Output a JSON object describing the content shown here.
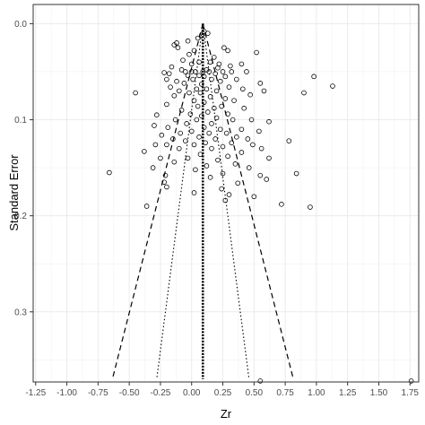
{
  "chart_data": {
    "type": "scatter",
    "title": "",
    "xlabel": "Zr",
    "ylabel": "Standard Error",
    "xlim": [
      -1.27,
      1.82
    ],
    "ylim": [
      0.373,
      -0.02
    ],
    "y_reversed": true,
    "grid": true,
    "legend": "none",
    "x_ticks": [
      -1.25,
      -1.0,
      -0.75,
      -0.5,
      -0.25,
      0.0,
      0.25,
      0.5,
      0.75,
      1.0,
      1.25,
      1.5,
      1.75
    ],
    "x_tick_labels": [
      "-1.25",
      "-1.00",
      "-0.75",
      "-0.50",
      "-0.25",
      "0.00",
      "0.25",
      "0.50",
      "0.75",
      "1.00",
      "1.25",
      "1.50",
      "1.75"
    ],
    "y_ticks": [
      0.0,
      0.1,
      0.2,
      0.3
    ],
    "y_tick_labels": [
      "0.0",
      "0.1",
      "0.2",
      "0.3"
    ],
    "summary_effect": 0.09,
    "funnel_se_max": 0.37,
    "funnel_95_multiplier": 1.96,
    "funnel_inner_multiplier": 1.0,
    "points": [
      {
        "x": 0.1,
        "y": 0.008
      },
      {
        "x": 0.13,
        "y": 0.01
      },
      {
        "x": 0.08,
        "y": 0.012
      },
      {
        "x": 0.05,
        "y": 0.015
      },
      {
        "x": -0.14,
        "y": 0.022
      },
      {
        "x": -0.12,
        "y": 0.02
      },
      {
        "x": -0.03,
        "y": 0.018
      },
      {
        "x": -0.11,
        "y": 0.025
      },
      {
        "x": 0.02,
        "y": 0.028
      },
      {
        "x": 0.26,
        "y": 0.025
      },
      {
        "x": 0.29,
        "y": 0.028
      },
      {
        "x": 0.52,
        "y": 0.03
      },
      {
        "x": -0.02,
        "y": 0.032
      },
      {
        "x": 0.18,
        "y": 0.035
      },
      {
        "x": -0.07,
        "y": 0.038
      },
      {
        "x": 0.06,
        "y": 0.04
      },
      {
        "x": 0.0,
        "y": 0.042
      },
      {
        "x": 0.15,
        "y": 0.04
      },
      {
        "x": 0.22,
        "y": 0.042
      },
      {
        "x": 0.31,
        "y": 0.044
      },
      {
        "x": 0.4,
        "y": 0.042
      },
      {
        "x": -0.16,
        "y": 0.045
      },
      {
        "x": 0.21,
        "y": 0.046
      },
      {
        "x": 0.12,
        "y": 0.048
      },
      {
        "x": -0.08,
        "y": 0.048
      },
      {
        "x": -0.05,
        "y": 0.05
      },
      {
        "x": 0.0,
        "y": 0.05
      },
      {
        "x": 0.03,
        "y": 0.05
      },
      {
        "x": 0.09,
        "y": 0.05
      },
      {
        "x": 0.14,
        "y": 0.05
      },
      {
        "x": 0.25,
        "y": 0.05
      },
      {
        "x": 0.32,
        "y": 0.05
      },
      {
        "x": 0.44,
        "y": 0.05
      },
      {
        "x": -0.22,
        "y": 0.051
      },
      {
        "x": -0.18,
        "y": 0.052
      },
      {
        "x": 0.19,
        "y": 0.052
      },
      {
        "x": -0.03,
        "y": 0.054
      },
      {
        "x": 0.06,
        "y": 0.054
      },
      {
        "x": 0.1,
        "y": 0.055
      },
      {
        "x": 0.27,
        "y": 0.055
      },
      {
        "x": -0.2,
        "y": 0.058
      },
      {
        "x": -0.12,
        "y": 0.06
      },
      {
        "x": 0.01,
        "y": 0.058
      },
      {
        "x": 0.16,
        "y": 0.058
      },
      {
        "x": 0.23,
        "y": 0.06
      },
      {
        "x": 0.36,
        "y": 0.058
      },
      {
        "x": 0.55,
        "y": 0.062
      },
      {
        "x": -0.06,
        "y": 0.062
      },
      {
        "x": 0.08,
        "y": 0.063
      },
      {
        "x": 0.98,
        "y": 0.055
      },
      {
        "x": -0.17,
        "y": 0.066
      },
      {
        "x": 0.04,
        "y": 0.068
      },
      {
        "x": 0.12,
        "y": 0.068
      },
      {
        "x": 0.3,
        "y": 0.066
      },
      {
        "x": 0.41,
        "y": 0.068
      },
      {
        "x": 0.58,
        "y": 0.07
      },
      {
        "x": 1.13,
        "y": 0.065
      },
      {
        "x": -0.1,
        "y": 0.07
      },
      {
        "x": 0.2,
        "y": 0.07
      },
      {
        "x": -0.02,
        "y": 0.072
      },
      {
        "x": 0.07,
        "y": 0.072
      },
      {
        "x": -0.45,
        "y": 0.072
      },
      {
        "x": 0.9,
        "y": 0.072
      },
      {
        "x": 0.47,
        "y": 0.074
      },
      {
        "x": -0.14,
        "y": 0.075
      },
      {
        "x": 0.15,
        "y": 0.076
      },
      {
        "x": 0.27,
        "y": 0.078
      },
      {
        "x": 0.02,
        "y": 0.08
      },
      {
        "x": 0.1,
        "y": 0.082
      },
      {
        "x": 0.34,
        "y": 0.08
      },
      {
        "x": -0.2,
        "y": 0.084
      },
      {
        "x": 0.05,
        "y": 0.086
      },
      {
        "x": 0.18,
        "y": 0.088
      },
      {
        "x": 0.24,
        "y": 0.086
      },
      {
        "x": 0.42,
        "y": 0.088
      },
      {
        "x": -0.08,
        "y": 0.09
      },
      {
        "x": 0.13,
        "y": 0.092
      },
      {
        "x": -0.01,
        "y": 0.094
      },
      {
        "x": 0.29,
        "y": 0.094
      },
      {
        "x": -0.28,
        "y": 0.095
      },
      {
        "x": 0.08,
        "y": 0.096
      },
      {
        "x": 0.2,
        "y": 0.098
      },
      {
        "x": -0.13,
        "y": 0.1
      },
      {
        "x": 0.04,
        "y": 0.1
      },
      {
        "x": 0.33,
        "y": 0.1
      },
      {
        "x": 0.48,
        "y": 0.1
      },
      {
        "x": 0.62,
        "y": 0.102
      },
      {
        "x": -0.04,
        "y": 0.104
      },
      {
        "x": 0.16,
        "y": 0.104
      },
      {
        "x": -0.3,
        "y": 0.106
      },
      {
        "x": -0.19,
        "y": 0.108
      },
      {
        "x": 0.1,
        "y": 0.108
      },
      {
        "x": 0.23,
        "y": 0.11
      },
      {
        "x": 0.4,
        "y": 0.11
      },
      {
        "x": 0.0,
        "y": 0.112
      },
      {
        "x": 0.54,
        "y": 0.112
      },
      {
        "x": -0.09,
        "y": 0.114
      },
      {
        "x": 0.14,
        "y": 0.114
      },
      {
        "x": 0.28,
        "y": 0.114
      },
      {
        "x": -0.24,
        "y": 0.116
      },
      {
        "x": 0.06,
        "y": 0.118
      },
      {
        "x": 0.36,
        "y": 0.118
      },
      {
        "x": -0.15,
        "y": 0.12
      },
      {
        "x": 0.19,
        "y": 0.12
      },
      {
        "x": 0.45,
        "y": 0.12
      },
      {
        "x": -0.05,
        "y": 0.122
      },
      {
        "x": 0.11,
        "y": 0.124
      },
      {
        "x": 0.32,
        "y": 0.124
      },
      {
        "x": 0.78,
        "y": 0.122
      },
      {
        "x": -0.29,
        "y": 0.126
      },
      {
        "x": -0.2,
        "y": 0.126
      },
      {
        "x": 0.02,
        "y": 0.126
      },
      {
        "x": 0.25,
        "y": 0.128
      },
      {
        "x": 0.49,
        "y": 0.126
      },
      {
        "x": 0.56,
        "y": 0.13
      },
      {
        "x": -0.1,
        "y": 0.13
      },
      {
        "x": 0.16,
        "y": 0.13
      },
      {
        "x": -0.38,
        "y": 0.133
      },
      {
        "x": 0.4,
        "y": 0.134
      },
      {
        "x": 0.07,
        "y": 0.136
      },
      {
        "x": 0.29,
        "y": 0.138
      },
      {
        "x": -0.25,
        "y": 0.14
      },
      {
        "x": -0.03,
        "y": 0.14
      },
      {
        "x": 0.62,
        "y": 0.14
      },
      {
        "x": 0.21,
        "y": 0.142
      },
      {
        "x": -0.14,
        "y": 0.144
      },
      {
        "x": 0.35,
        "y": 0.146
      },
      {
        "x": 0.12,
        "y": 0.148
      },
      {
        "x": -0.31,
        "y": 0.15
      },
      {
        "x": 0.46,
        "y": 0.15
      },
      {
        "x": 0.03,
        "y": 0.152
      },
      {
        "x": -0.66,
        "y": 0.155
      },
      {
        "x": 0.25,
        "y": 0.156
      },
      {
        "x": -0.21,
        "y": 0.158
      },
      {
        "x": 0.55,
        "y": 0.158
      },
      {
        "x": 0.84,
        "y": 0.156
      },
      {
        "x": 0.15,
        "y": 0.16
      },
      {
        "x": -0.22,
        "y": 0.165
      },
      {
        "x": 0.6,
        "y": 0.162
      },
      {
        "x": 0.37,
        "y": 0.166
      },
      {
        "x": -0.2,
        "y": 0.17
      },
      {
        "x": 0.24,
        "y": 0.172
      },
      {
        "x": 0.02,
        "y": 0.176
      },
      {
        "x": 0.3,
        "y": 0.178
      },
      {
        "x": 0.5,
        "y": 0.18
      },
      {
        "x": 0.27,
        "y": 0.184
      },
      {
        "x": 0.72,
        "y": 0.188
      },
      {
        "x": -0.36,
        "y": 0.19
      },
      {
        "x": 0.95,
        "y": 0.191
      },
      {
        "x": 0.55,
        "y": 0.372
      },
      {
        "x": 1.76,
        "y": 0.372
      }
    ]
  }
}
